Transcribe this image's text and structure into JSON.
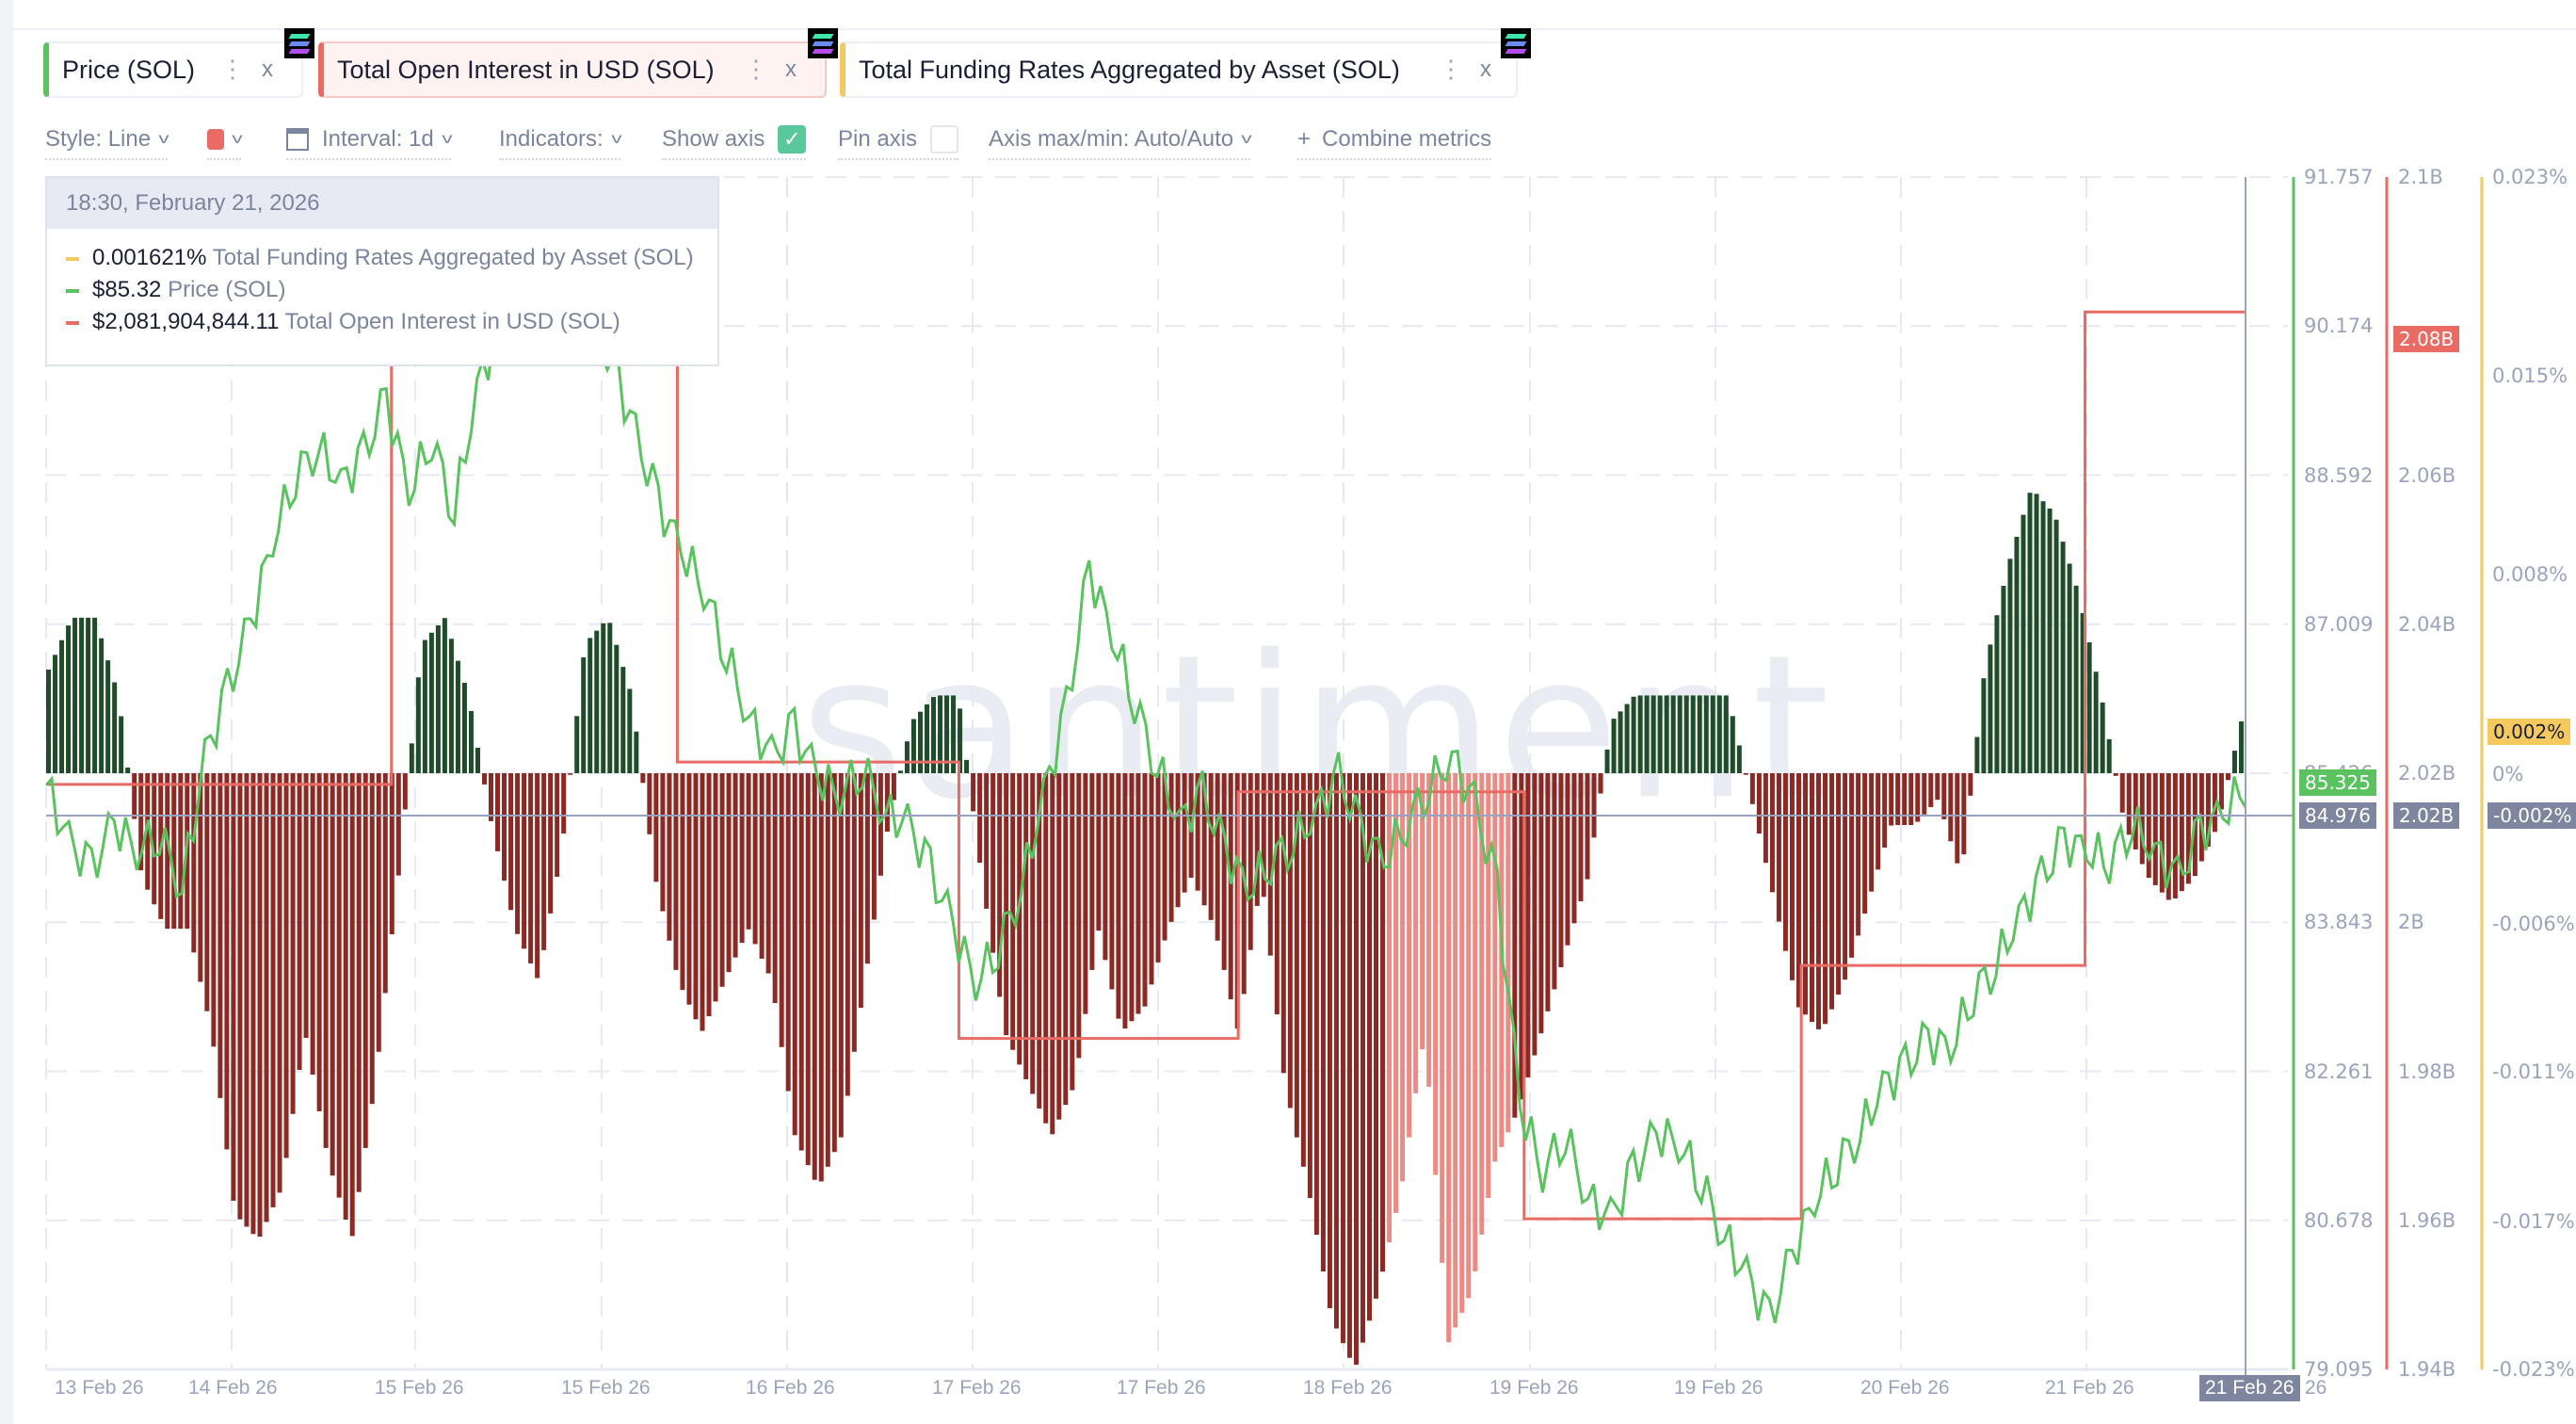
{
  "tabs": [
    {
      "label": "Price (SOL)",
      "color": "#5ac35f",
      "bg": "#ffffff",
      "icon": "solana-icon"
    },
    {
      "label": "Total Open Interest in USD (SOL)",
      "color": "#ea6b64",
      "bg": "#fff3f2",
      "icon": "solana-icon"
    },
    {
      "label": "Total Funding Rates Aggregated by Asset (SOL)",
      "color": "#f4c95d",
      "bg": "#ffffff",
      "icon": "solana-icon"
    }
  ],
  "tab_menu_glyph": "⋮",
  "tab_close_glyph": "x",
  "toolbar": {
    "style": "Style: Line",
    "color_swatch": "#ea6b64",
    "interval": "Interval: 1d",
    "indicators": "Indicators:",
    "show_axis": "Show axis",
    "show_axis_checked": true,
    "pin_axis": "Pin axis",
    "pin_axis_checked": false,
    "axis_minmax": "Axis max/min: Auto/Auto",
    "combine": "Combine metrics",
    "combine_icon": "+"
  },
  "tooltip": {
    "datetime": "18:30, February 21, 2026",
    "rows": [
      {
        "value": "0.001621%",
        "name": "Total Funding Rates Aggregated by Asset (SOL)",
        "color": "#f4c95d"
      },
      {
        "value": "$85.32",
        "name": "Price (SOL)",
        "color": "#5ac35f"
      },
      {
        "value": "$2,081,904,844.11",
        "name": "Total Open Interest in USD (SOL)",
        "color": "#ea6b64"
      }
    ]
  },
  "watermark": "santiment",
  "axes": {
    "price": {
      "ticks": [
        "91.757",
        "90.174",
        "88.592",
        "87.009",
        "85.426",
        "83.843",
        "82.261",
        "80.678",
        "79.095"
      ],
      "color": "#5ac35f",
      "current": "85.325",
      "crosshair": "84.976"
    },
    "open_interest": {
      "ticks": [
        "2.1B",
        "2.08B",
        "2.06B",
        "2.04B",
        "2.02B",
        "2B",
        "1.98B",
        "1.96B",
        "1.94B"
      ],
      "color": "#ea6b64",
      "current": "2.08B",
      "crosshair": "2.02B"
    },
    "funding": {
      "ticks": [
        "0.023%",
        "0.015%",
        "0.008%",
        "0.002%",
        "0%",
        "-0.006%",
        "-0.011%",
        "-0.017%",
        "-0.023%"
      ],
      "color": "#f4c95d",
      "current": "0.002%",
      "crosshair": "-0.002%"
    }
  },
  "x_labels": [
    "13 Feb 26",
    "14 Feb 26",
    "15 Feb 26",
    "15 Feb 26",
    "16 Feb 26",
    "17 Feb 26",
    "17 Feb 26",
    "18 Feb 26",
    "19 Feb 26",
    "19 Feb 26",
    "20 Feb 26",
    "21 Feb 26"
  ],
  "x_crosshair_label": "21 Feb 26",
  "x_tail_label": "26",
  "chart_data": {
    "type": "line",
    "title": "",
    "xlabel": "",
    "ylabel": "",
    "categories": [
      "13 Feb 26",
      "14 Feb 26",
      "15 Feb 26",
      "15 Feb 26",
      "16 Feb 26",
      "17 Feb 26",
      "17 Feb 26",
      "18 Feb 26",
      "19 Feb 26",
      "19 Feb 26",
      "20 Feb 26",
      "21 Feb 26"
    ],
    "grid": true,
    "legend_position": "top",
    "series": [
      {
        "name": "Price (SOL)",
        "type": "line",
        "axis": "right-1",
        "color": "#5ac35f",
        "ylim": [
          79.095,
          91.757
        ],
        "values": [
          85.3,
          84.7,
          84.4,
          84.9,
          84.6,
          84.8,
          84.2,
          85.6,
          86.3,
          87.0,
          87.9,
          88.6,
          88.9,
          88.5,
          88.8,
          89.4,
          88.4,
          89.0,
          88.2,
          89.5,
          90.2,
          91.0,
          90.6,
          90.3,
          90.1,
          89.8,
          89.0,
          88.3,
          87.8,
          87.4,
          86.7,
          86.0,
          85.6,
          85.9,
          85.4,
          85.2,
          85.5,
          85.0,
          84.9,
          84.4,
          83.8,
          83.2,
          83.6,
          84.2,
          85.2,
          86.1,
          87.6,
          86.9,
          86.2,
          85.5,
          84.9,
          85.2,
          84.6,
          84.2,
          84.5,
          84.7,
          85.0,
          85.4,
          84.8,
          84.5,
          84.9,
          85.3,
          85.6,
          85.1,
          84.2,
          81.9,
          81.2,
          81.6,
          80.9,
          80.7,
          81.2,
          81.6,
          81.5,
          81.1,
          80.5,
          80.1,
          79.6,
          80.3,
          80.9,
          81.3,
          81.6,
          82.1,
          82.3,
          82.6,
          82.5,
          83.1,
          83.4,
          83.9,
          84.3,
          84.7,
          84.6,
          84.5,
          84.9,
          84.6,
          84.3,
          84.8,
          85.0,
          85.3
        ],
        "hover_value": 85.32
      },
      {
        "name": "Total Open Interest in USD (SOL)",
        "type": "step",
        "axis": "right-2",
        "color": "#ea6b64",
        "ylim": [
          1940000000.0,
          2100000000.0
        ],
        "steps": [
          {
            "x0": 0.0,
            "x1": 0.157,
            "value": 2018500000.0
          },
          {
            "x0": 0.157,
            "x1": 0.287,
            "value": 2084500000.0
          },
          {
            "x0": 0.287,
            "x1": 0.415,
            "value": 2021500000.0
          },
          {
            "x0": 0.415,
            "x1": 0.542,
            "value": 1984400000.0
          },
          {
            "x0": 0.542,
            "x1": 0.672,
            "value": 2017500000.0
          },
          {
            "x0": 0.672,
            "x1": 0.798,
            "value": 1960200000.0
          },
          {
            "x0": 0.798,
            "x1": 0.927,
            "value": 1994200000.0
          },
          {
            "x0": 0.927,
            "x1": 1.0,
            "value": 2081900000.0
          }
        ],
        "hover_value": 2081904844.11
      },
      {
        "name": "Total Funding Rates Aggregated by Asset (SOL)",
        "type": "bar",
        "axis": "right-3",
        "color_positive": "#1f4d2a",
        "color_negative": "#8b2a24",
        "ylim": [
          -0.023,
          0.023
        ],
        "unit": "%",
        "values": [
          0.004,
          0.006,
          0.006,
          0.003,
          -0.004,
          -0.006,
          -0.006,
          -0.01,
          -0.017,
          -0.018,
          -0.016,
          -0.01,
          -0.015,
          -0.018,
          -0.012,
          -0.004,
          0.005,
          0.006,
          0.003,
          -0.002,
          -0.006,
          -0.008,
          -0.003,
          0.005,
          0.006,
          0.003,
          -0.004,
          -0.008,
          -0.01,
          -0.008,
          -0.006,
          -0.008,
          -0.014,
          -0.016,
          -0.014,
          -0.008,
          -0.002,
          0.002,
          0.003,
          0.003,
          -0.004,
          -0.01,
          -0.012,
          -0.014,
          -0.012,
          -0.006,
          -0.01,
          -0.009,
          -0.006,
          -0.004,
          -0.006,
          -0.01,
          -0.004,
          -0.012,
          -0.016,
          -0.021,
          -0.023,
          -0.02,
          -0.016,
          -0.01,
          -0.022,
          -0.02,
          -0.015,
          -0.013,
          -0.01,
          -0.007,
          -0.004,
          0.002,
          0.003,
          0.003,
          0.003,
          0.003,
          0.003,
          -0.001,
          -0.005,
          -0.009,
          -0.01,
          -0.008,
          -0.005,
          -0.002,
          -0.002,
          -0.001,
          -0.004,
          0.004,
          0.008,
          0.011,
          0.01,
          0.007,
          0.003,
          -0.002,
          -0.004,
          -0.005,
          -0.004,
          -0.002,
          0.002
        ],
        "hover_value": 0.001621
      }
    ]
  }
}
